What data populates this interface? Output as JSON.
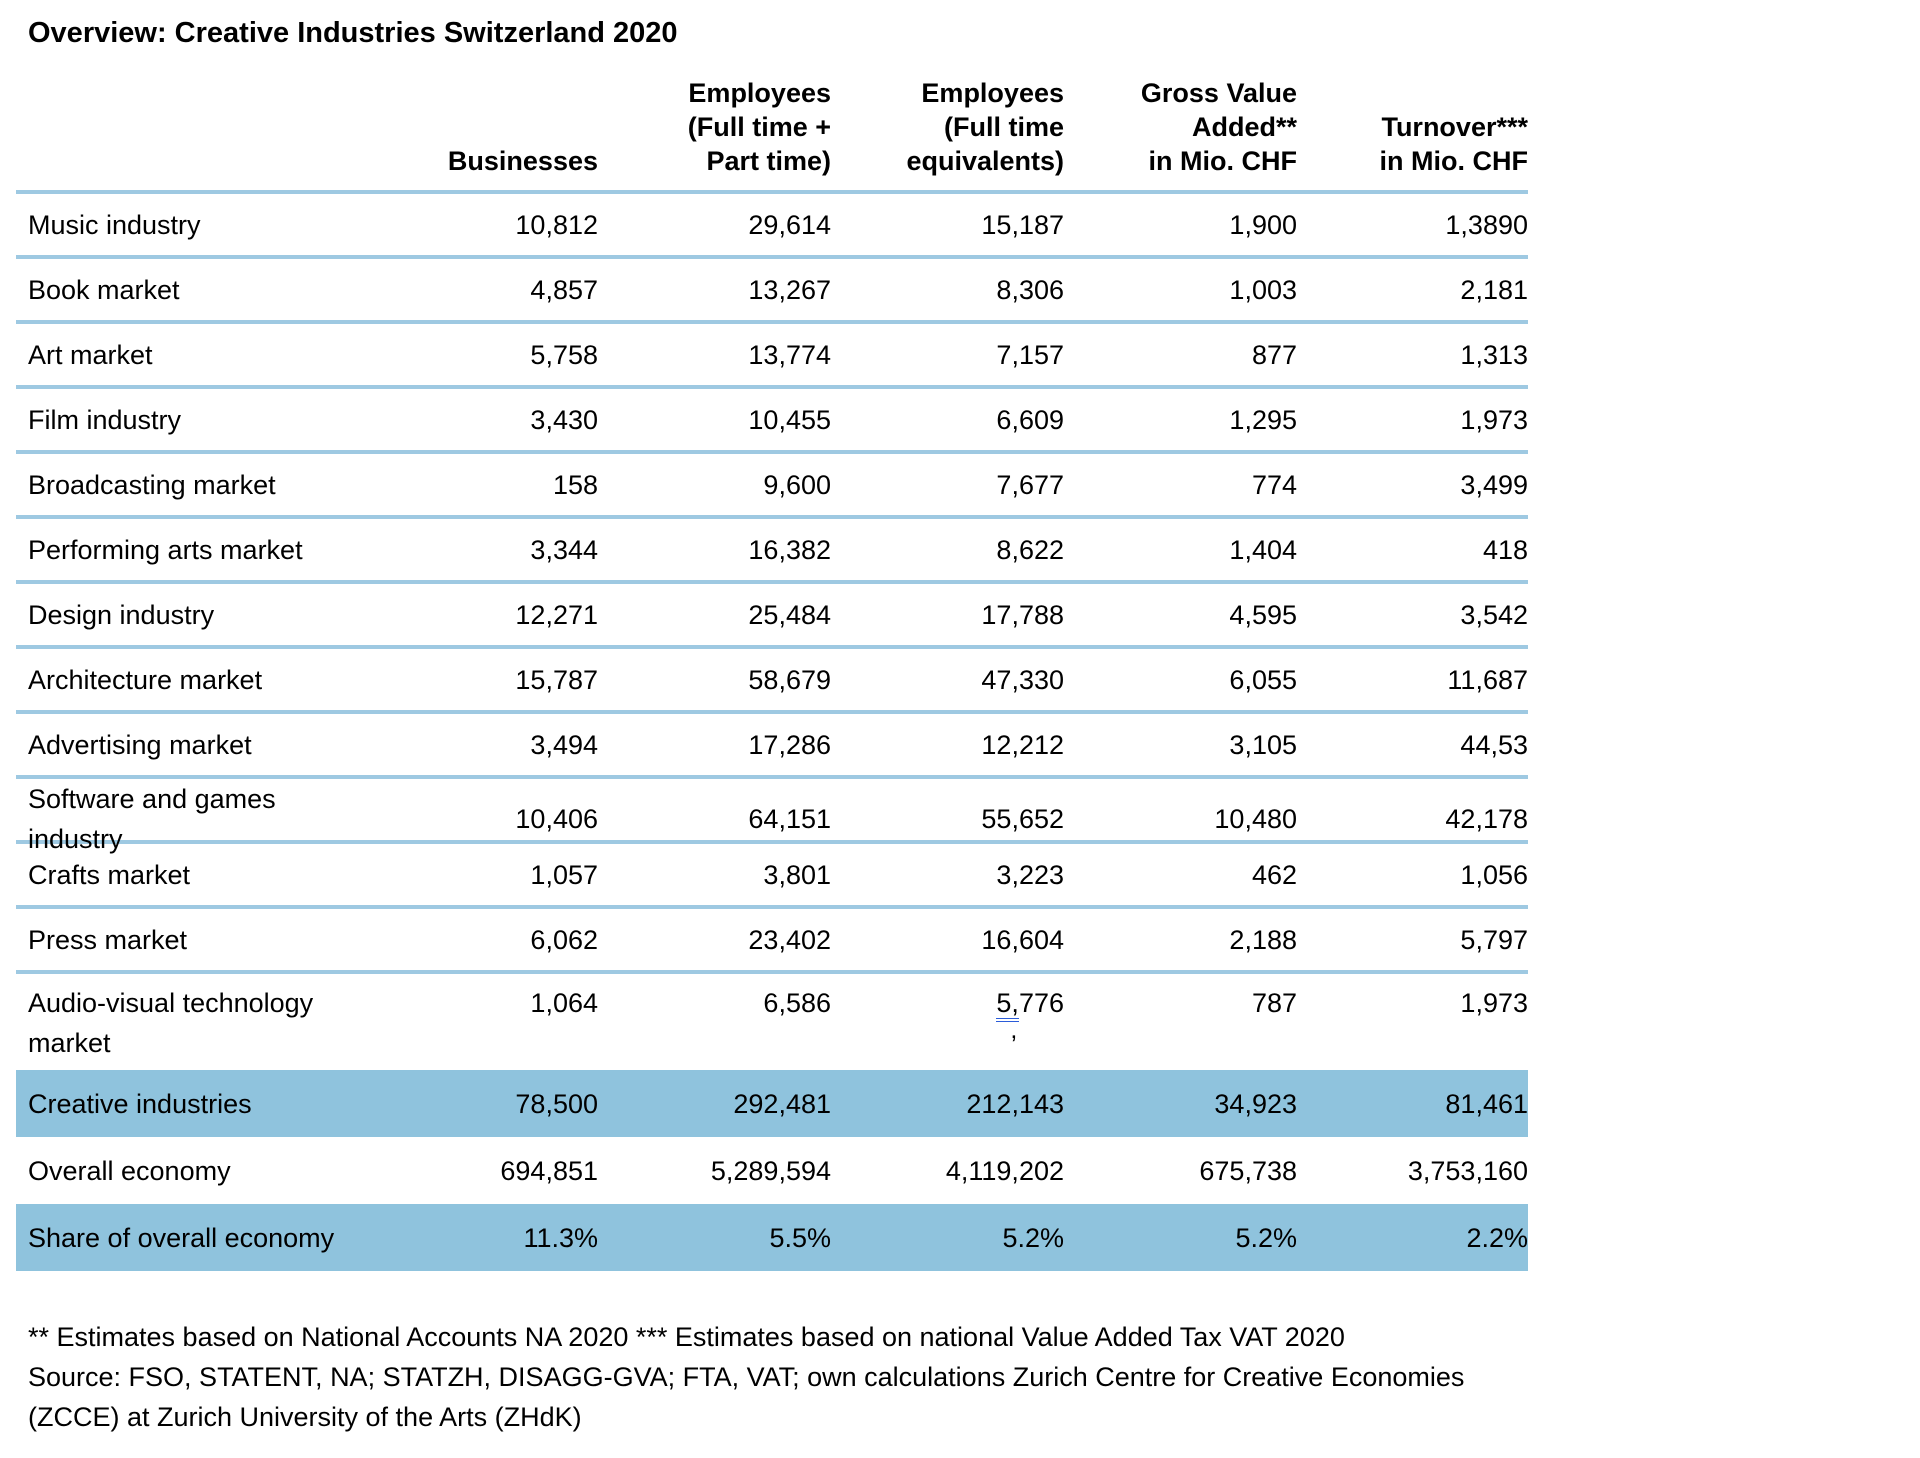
{
  "title": "Overview: Creative Industries Switzerland 2020",
  "colors": {
    "band_blue": "#8fc3dd",
    "line_blue": "#9ec9e2",
    "flag_blue": "#2b5cd9"
  },
  "table": {
    "headers": [
      "Businesses",
      "Employees\n(Full time +\nPart time)",
      "Employees\n(Full time\nequivalents)",
      "Gross Value\nAdded**\nin Mio. CHF",
      "Turnover***\nin Mio. CHF"
    ],
    "rows": [
      {
        "label": "Music industry",
        "values": [
          "10,812",
          "29,614",
          "15,187",
          "1,900",
          "1,3890"
        ]
      },
      {
        "label": "Book market",
        "values": [
          "4,857",
          "13,267",
          "8,306",
          "1,003",
          "2,181"
        ]
      },
      {
        "label": "Art market",
        "values": [
          "5,758",
          "13,774",
          "7,157",
          "877",
          "1,313"
        ]
      },
      {
        "label": "Film industry",
        "values": [
          "3,430",
          "10,455",
          "6,609",
          "1,295",
          "1,973"
        ]
      },
      {
        "label": "Broadcasting market",
        "values": [
          "158",
          "9,600",
          "7,677",
          "774",
          "3,499"
        ]
      },
      {
        "label": "Performing arts market",
        "values": [
          "3,344",
          "16,382",
          "8,622",
          "1,404",
          "418"
        ]
      },
      {
        "label": "Design industry",
        "values": [
          "12,271",
          "25,484",
          "17,788",
          "4,595",
          "3,542"
        ]
      },
      {
        "label": "Architecture market",
        "values": [
          "15,787",
          "58,679",
          "47,330",
          "6,055",
          "11,687"
        ]
      },
      {
        "label": "Advertising market",
        "values": [
          "3,494",
          "17,286",
          "12,212",
          "3,105",
          "44,53"
        ]
      },
      {
        "label": "Software and games industry",
        "values": [
          "10,406",
          "64,151",
          "55,652",
          "10,480",
          "42,178"
        ]
      },
      {
        "label": "Crafts market",
        "values": [
          "1,057",
          "3,801",
          "3,223",
          "462",
          "1,056"
        ]
      },
      {
        "label": "Press market",
        "values": [
          "6,062",
          "23,402",
          "16,604",
          "2,188",
          "5,797"
        ]
      },
      {
        "label": "Audio-visual technology market",
        "values": [
          "1,064",
          "6,586",
          "5,776",
          "787",
          "1,973"
        ],
        "fte_parts": {
          "flagged": "5,",
          "rest": "776",
          "artifact": ","
        }
      }
    ],
    "creative": {
      "label": "Creative industries",
      "values": [
        "78,500",
        "292,481",
        "212,143",
        "34,923",
        "81,461"
      ]
    },
    "overall": {
      "label": "Overall economy",
      "values": [
        "694,851",
        "5,289,594",
        "4,119,202",
        "675,738",
        "3,753,160"
      ]
    },
    "share": {
      "label": "Share of overall economy",
      "values": [
        "11.3%",
        "5.5%",
        "5.2%",
        "5.2%",
        "2.2%"
      ]
    }
  },
  "footnotes": {
    "estimates": "** Estimates based on National Accounts NA 2020 *** Estimates based on national Value Added Tax VAT 2020",
    "source": "Source: FSO, STATENT, NA; STATZH, DISAGG-GVA; FTA, VAT; own calculations Zurich Centre for Creative Economies (ZCCE) at Zurich University of the Arts (ZHdK)"
  }
}
